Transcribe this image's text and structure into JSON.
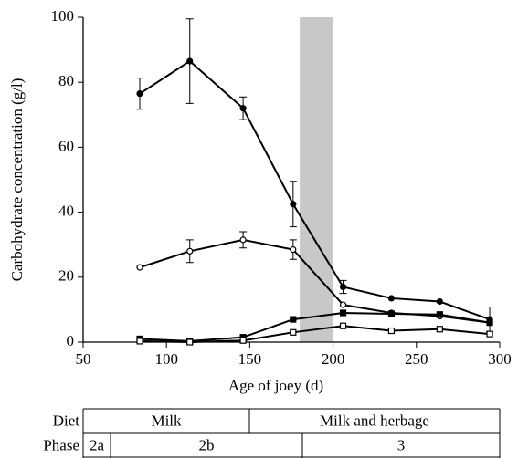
{
  "chart_data": {
    "type": "line",
    "xlabel": "Age of joey (d)",
    "ylabel": "Carbohydrate concentration (g/l)",
    "x": [
      84,
      114,
      146,
      176,
      206,
      235,
      264,
      294
    ],
    "xlim": [
      50,
      300
    ],
    "xticks": [
      50,
      100,
      150,
      200,
      250,
      300
    ],
    "ylim": [
      0,
      100
    ],
    "yticks": [
      0,
      20,
      40,
      60,
      80,
      100
    ],
    "shaded_region": {
      "xlim": [
        180,
        200
      ],
      "color": "#c8c8c8"
    },
    "series": [
      {
        "color": "#000000",
        "marker": "filled-circle",
        "values": [
          76.5,
          86.5,
          72,
          42.5,
          17,
          13.5,
          12.5,
          7
        ],
        "errors": [
          4.8,
          13,
          3.5,
          7,
          2,
          null,
          null,
          3.8
        ]
      },
      {
        "color": "#000000",
        "marker": "open-circle",
        "values": [
          23,
          28,
          31.5,
          28.5,
          11.5,
          9,
          8,
          6
        ],
        "errors": [
          null,
          3.5,
          2.5,
          3,
          null,
          null,
          null,
          null
        ]
      },
      {
        "color": "#000000",
        "marker": "filled-square",
        "values": [
          1,
          0.3,
          1.5,
          7,
          9,
          8.7,
          8.5,
          6
        ],
        "errors": [
          null,
          null,
          null,
          null,
          null,
          null,
          null,
          null
        ]
      },
      {
        "color": "#000000",
        "marker": "open-square",
        "values": [
          0.3,
          0,
          0.5,
          3,
          5,
          3.5,
          4,
          2.5
        ],
        "errors": [
          null,
          null,
          null,
          null,
          null,
          null,
          null,
          null
        ]
      }
    ]
  },
  "table": {
    "rows": [
      [
        "Diet",
        "Milk",
        "Milk and herbage"
      ],
      [
        "Phase",
        "2a",
        "2b",
        "3"
      ]
    ]
  }
}
